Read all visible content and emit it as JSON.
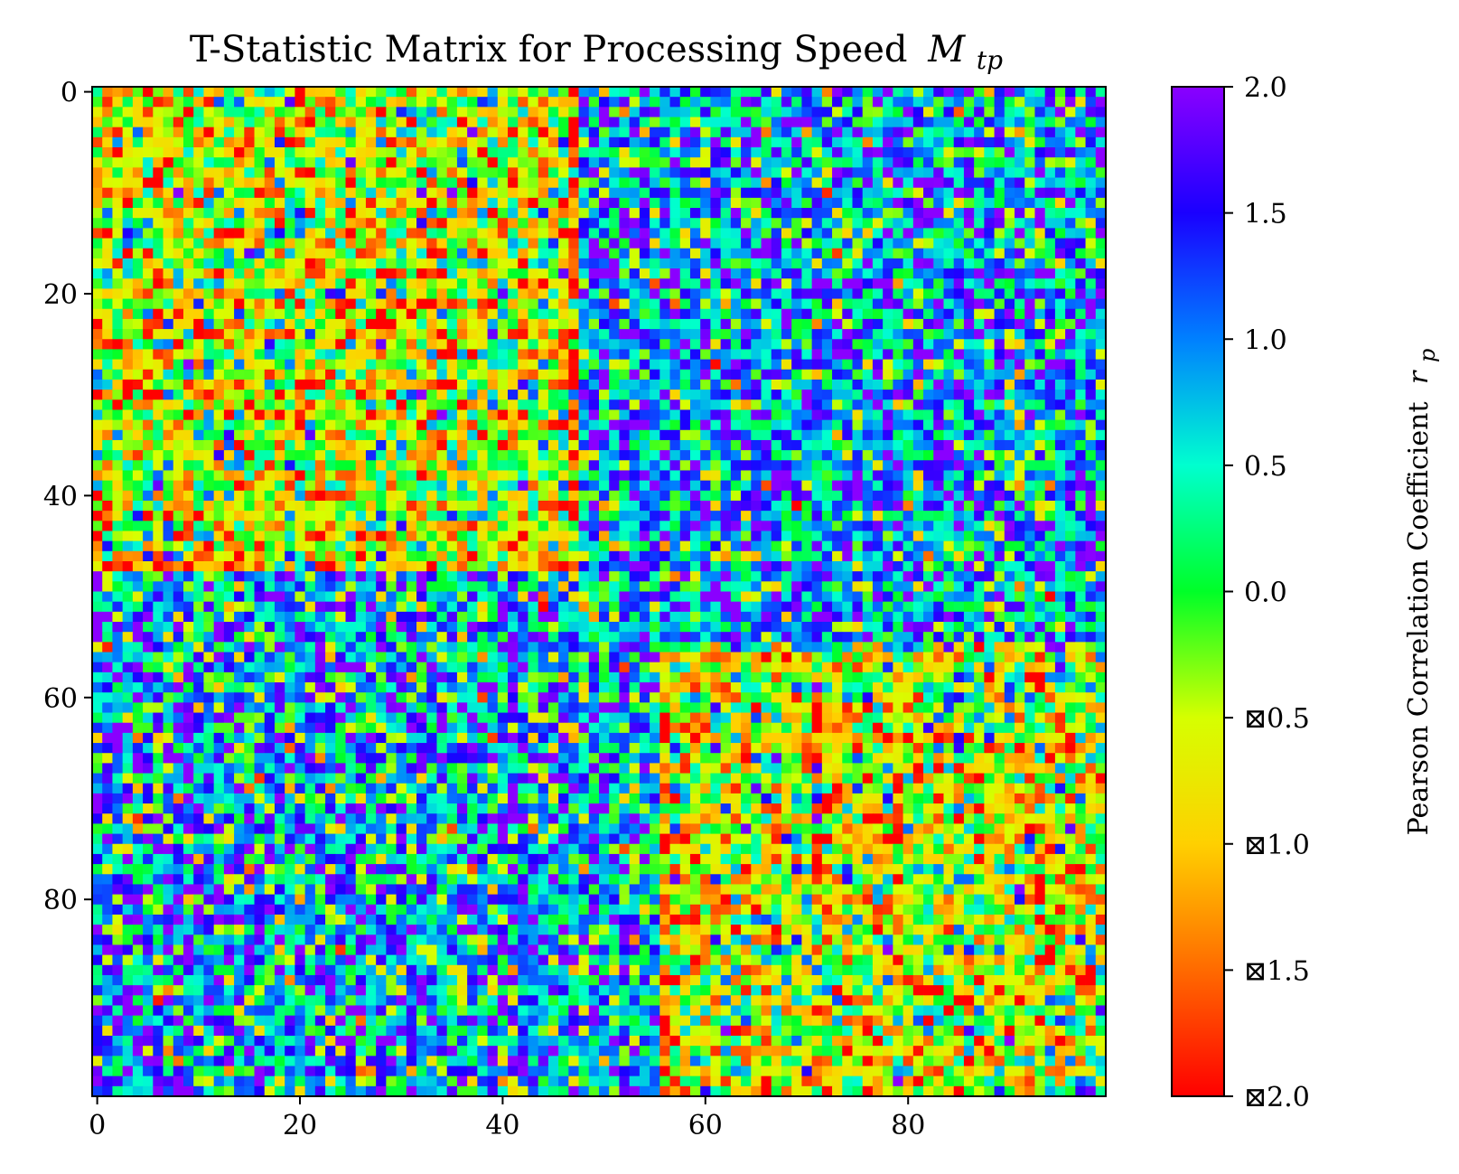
{
  "chart_data": {
    "type": "heatmap",
    "title": "T-Statistic Matrix for Processing Speed",
    "title_math": "M",
    "title_math_sub": "tp",
    "rows": 100,
    "cols": 100,
    "x_ticks": [
      "0",
      "20",
      "40",
      "60",
      "80"
    ],
    "x_tick_values": [
      0,
      20,
      40,
      60,
      80
    ],
    "y_ticks": [
      "0",
      "20",
      "40",
      "60",
      "80"
    ],
    "y_tick_values": [
      0,
      20,
      40,
      60,
      80
    ],
    "colormap": "gist_rainbow",
    "vmin": -2.0,
    "vmax": 2.0,
    "colorbar": {
      "label": "Pearson Correlation Coefficient",
      "label_math": "r",
      "label_math_sub": "p",
      "ticks": [
        "2.0",
        "1.5",
        "1.0",
        "0.5",
        "0.0",
        "⊠0.5",
        "⊠1.0",
        "⊠1.5",
        "⊠2.0"
      ],
      "tick_values": [
        2.0,
        1.5,
        1.0,
        0.5,
        0.0,
        -0.5,
        -1.0,
        -1.5,
        -2.0
      ],
      "colors": [
        "#ff0000",
        "#ff6a00",
        "#ffd000",
        "#d6ff00",
        "#00ff28",
        "#00ffcf",
        "#0080ff",
        "#1a00ff",
        "#8a00ff"
      ]
    },
    "structure_note_values": {
      "block_low_top_left": {
        "rows": [
          0,
          47
        ],
        "cols": [
          0,
          47
        ],
        "mean": -0.5
      },
      "block_high_top_right": {
        "rows": [
          0,
          55
        ],
        "cols": [
          48,
          99
        ],
        "mean": 0.8
      },
      "block_high_bottom_left": {
        "rows": [
          48,
          99
        ],
        "cols": [
          0,
          55
        ],
        "mean": 0.8
      },
      "block_low_bottom_right": {
        "rows": [
          55,
          99
        ],
        "cols": [
          56,
          99
        ],
        "mean": -0.5
      },
      "spread": 0.9
    }
  }
}
